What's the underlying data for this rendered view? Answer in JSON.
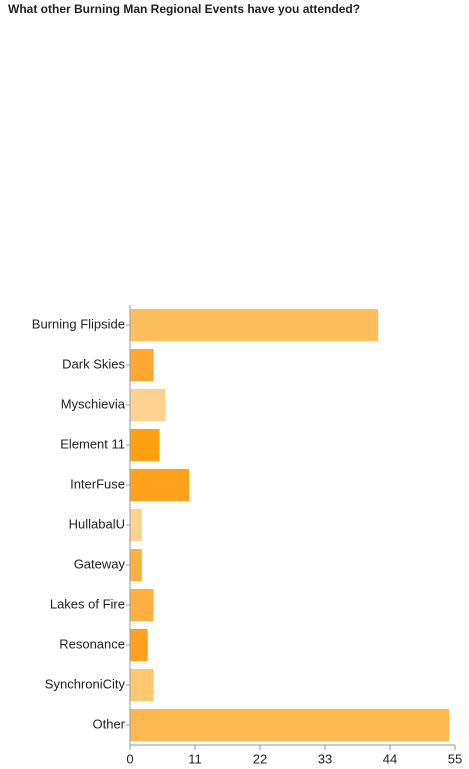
{
  "chart_data": {
    "type": "hbar",
    "title": "What other Burning Man Regional Events have you attended?",
    "categories": [
      "Burning Flipside",
      "Dark Skies",
      "Myschievia",
      "Element 11",
      "InterFuse",
      "HullabalU",
      "Gateway",
      "Lakes of Fire",
      "Resonance",
      "SynchroniCity",
      "Other"
    ],
    "values": [
      42,
      4,
      6,
      5,
      10,
      2,
      2,
      4,
      3,
      4,
      54
    ],
    "colors": [
      "#ffbe5c",
      "#ffa733",
      "#ffd18e",
      "#ffa010",
      "#ffa11a",
      "#ffd18e",
      "#ffb040",
      "#ffb040",
      "#ffa020",
      "#ffc770",
      "#ffb84f"
    ],
    "xlim": [
      0,
      55
    ],
    "xticks": [
      0,
      11,
      22,
      33,
      44,
      55
    ]
  }
}
